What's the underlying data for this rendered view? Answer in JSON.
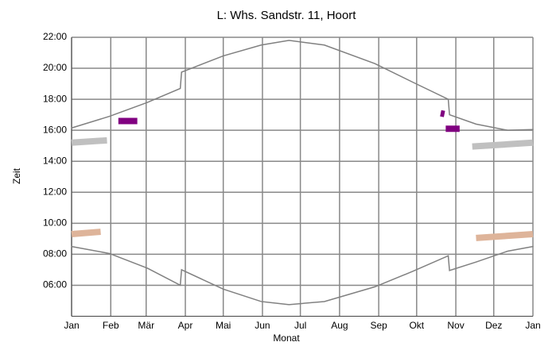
{
  "chart_data": {
    "type": "line",
    "title": "L: Whs. Sandstr. 11, Hoort",
    "xlabel": "Monat",
    "ylabel": "Zeit",
    "xlim": [
      0,
      365
    ],
    "ylim": [
      4,
      22
    ],
    "xticks": [
      {
        "value": 0,
        "label": "Jan"
      },
      {
        "value": 31,
        "label": "Feb"
      },
      {
        "value": 59,
        "label": "Mär"
      },
      {
        "value": 90,
        "label": "Apr"
      },
      {
        "value": 120,
        "label": "Mai"
      },
      {
        "value": 151,
        "label": "Jun"
      },
      {
        "value": 181,
        "label": "Jul"
      },
      {
        "value": 212,
        "label": "Aug"
      },
      {
        "value": 243,
        "label": "Sep"
      },
      {
        "value": 273,
        "label": "Okt"
      },
      {
        "value": 304,
        "label": "Nov"
      },
      {
        "value": 334,
        "label": "Dez"
      },
      {
        "value": 365,
        "label": "Jan"
      }
    ],
    "yticks": [
      {
        "value": 6,
        "label": "06:00"
      },
      {
        "value": 8,
        "label": "08:00"
      },
      {
        "value": 10,
        "label": "10:00"
      },
      {
        "value": 12,
        "label": "12:00"
      },
      {
        "value": 14,
        "label": "14:00"
      },
      {
        "value": 16,
        "label": "16:00"
      },
      {
        "value": 18,
        "label": "18:00"
      },
      {
        "value": 20,
        "label": "20:00"
      },
      {
        "value": 22,
        "label": "22:00"
      }
    ],
    "grid": true,
    "series": [
      {
        "color": "#808080",
        "x": [
          0,
          30,
          60,
          86,
          87,
          120,
          150,
          172,
          200,
          240,
          270,
          298,
          299,
          320,
          345,
          365
        ],
        "y": [
          16.15,
          16.9,
          17.8,
          18.7,
          19.75,
          20.8,
          21.5,
          21.8,
          21.5,
          20.3,
          19.1,
          18.0,
          17.0,
          16.4,
          16.0,
          16.05
        ]
      },
      {
        "color": "#808080",
        "x": [
          0,
          30,
          60,
          86,
          87,
          120,
          150,
          172,
          200,
          240,
          270,
          298,
          299,
          320,
          345,
          365
        ],
        "y": [
          8.5,
          8.05,
          7.1,
          6.0,
          7.0,
          5.75,
          4.95,
          4.75,
          4.95,
          5.9,
          6.9,
          7.9,
          6.95,
          7.5,
          8.2,
          8.5
        ]
      }
    ],
    "shadows": [
      {
        "color": "#c0c0c0",
        "x": [
          0,
          28
        ],
        "y": [
          15.2,
          15.35
        ]
      },
      {
        "color": "#800080",
        "x": [
          37,
          52
        ],
        "y": [
          16.6,
          16.6
        ]
      },
      {
        "color": "#800080",
        "x": [
          292,
          295
        ],
        "y": [
          17.1,
          17.05
        ]
      },
      {
        "color": "#800080",
        "x": [
          296,
          307
        ],
        "y": [
          16.1,
          16.1
        ]
      },
      {
        "color": "#c0c0c0",
        "x": [
          317,
          365
        ],
        "y": [
          14.95,
          15.2
        ]
      },
      {
        "color": "#deb49a",
        "x": [
          0,
          23
        ],
        "y": [
          9.3,
          9.45
        ]
      },
      {
        "color": "#deb49a",
        "x": [
          320,
          365
        ],
        "y": [
          9.05,
          9.3
        ]
      }
    ]
  }
}
